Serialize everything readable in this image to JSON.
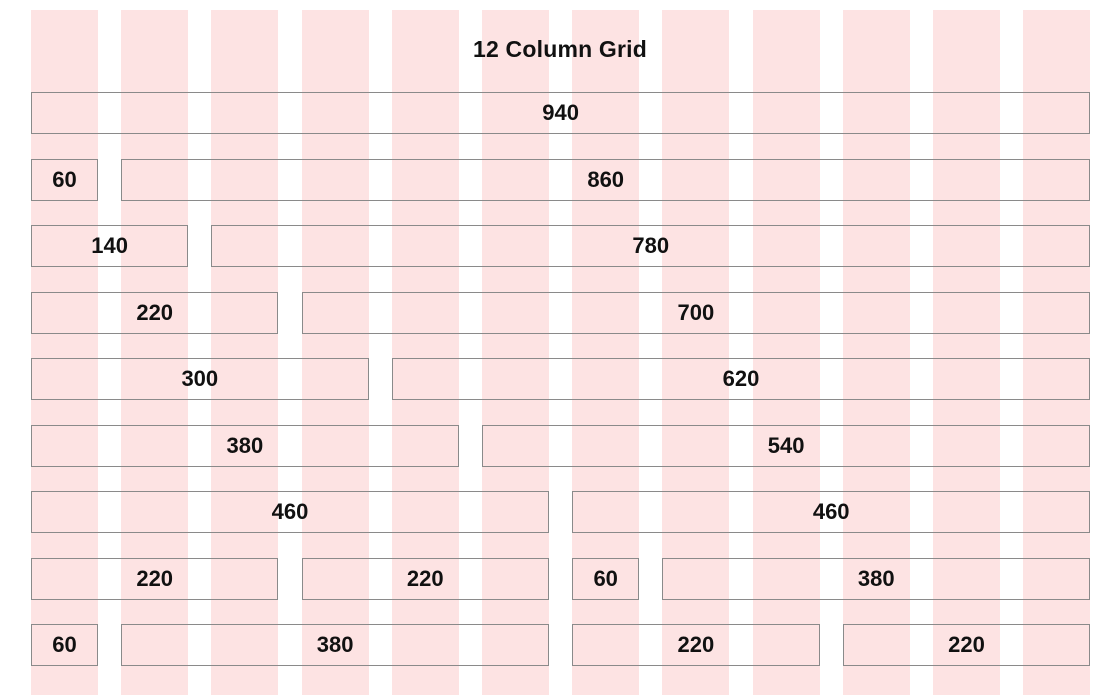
{
  "title": "12 Column Grid",
  "grid": {
    "columns": 12,
    "stripe_color": "#fde3e3",
    "border_color": "#8a8a8a"
  },
  "rows": [
    {
      "cells": [
        {
          "label": "940",
          "span": 12
        }
      ]
    },
    {
      "cells": [
        {
          "label": "60",
          "span": 1
        },
        {
          "label": "860",
          "span": 11
        }
      ]
    },
    {
      "cells": [
        {
          "label": "140",
          "span": 2
        },
        {
          "label": "780",
          "span": 10
        }
      ]
    },
    {
      "cells": [
        {
          "label": "220",
          "span": 3
        },
        {
          "label": "700",
          "span": 9
        }
      ]
    },
    {
      "cells": [
        {
          "label": "300",
          "span": 4
        },
        {
          "label": "620",
          "span": 8
        }
      ]
    },
    {
      "cells": [
        {
          "label": "380",
          "span": 5
        },
        {
          "label": "540",
          "span": 7
        }
      ]
    },
    {
      "cells": [
        {
          "label": "460",
          "span": 6
        },
        {
          "label": "460",
          "span": 6
        }
      ]
    },
    {
      "cells": [
        {
          "label": "220",
          "span": 3
        },
        {
          "label": "220",
          "span": 3
        },
        {
          "label": "60",
          "span": 1
        },
        {
          "label": "380",
          "span": 5
        }
      ]
    },
    {
      "cells": [
        {
          "label": "60",
          "span": 1
        },
        {
          "label": "380",
          "span": 5
        },
        {
          "label": "220",
          "span": 3
        },
        {
          "label": "220",
          "span": 3
        }
      ]
    }
  ]
}
